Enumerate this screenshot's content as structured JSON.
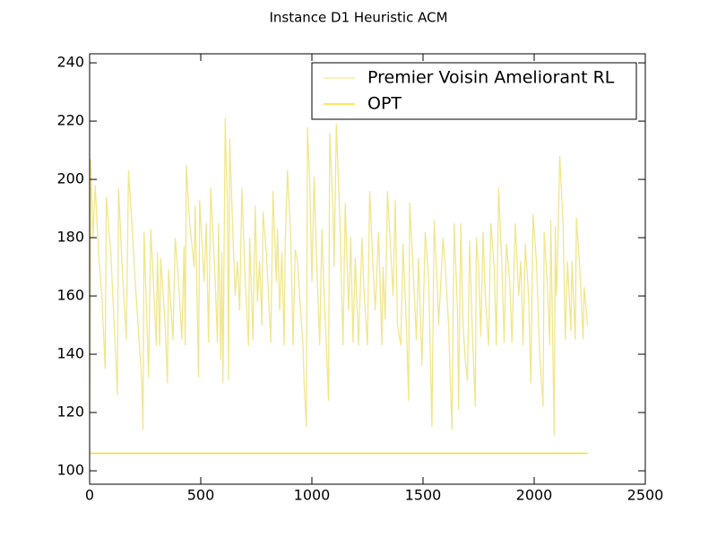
{
  "chart_data": {
    "type": "line",
    "title": "Instance D1 Heuristic ACM",
    "xlim": [
      0,
      2500
    ],
    "xticks": [
      0,
      500,
      1000,
      1500,
      2000,
      2500
    ],
    "ylim": [
      95.4,
      243.1
    ],
    "yticks": [
      100,
      120,
      140,
      160,
      180,
      200,
      220,
      240
    ],
    "legend": "upper right",
    "series": [
      {
        "name": "Premier Voisin Ameliorant RL",
        "color": "#f0e68c",
        "x": [
          0,
          5,
          15,
          25,
          40,
          55,
          70,
          75,
          95,
          115,
          125,
          130,
          145,
          165,
          175,
          190,
          205,
          235,
          240,
          245,
          260,
          265,
          275,
          290,
          300,
          305,
          315,
          320,
          340,
          350,
          355,
          375,
          385,
          400,
          415,
          425,
          430,
          435,
          450,
          470,
          475,
          490,
          495,
          515,
          525,
          535,
          545,
          565,
          575,
          580,
          590,
          595,
          600,
          610,
          620,
          625,
          630,
          645,
          655,
          665,
          675,
          685,
          700,
          715,
          720,
          735,
          745,
          755,
          765,
          775,
          780,
          795,
          805,
          815,
          825,
          840,
          845,
          855,
          865,
          875,
          880,
          890,
          905,
          915,
          925,
          935,
          945,
          960,
          965,
          975,
          980,
          990,
          1000,
          1010,
          1020,
          1035,
          1045,
          1055,
          1065,
          1075,
          1080,
          1095,
          1100,
          1110,
          1125,
          1140,
          1150,
          1165,
          1175,
          1185,
          1195,
          1210,
          1225,
          1235,
          1250,
          1260,
          1275,
          1285,
          1300,
          1315,
          1320,
          1330,
          1340,
          1355,
          1365,
          1375,
          1385,
          1400,
          1410,
          1425,
          1435,
          1440,
          1455,
          1470,
          1480,
          1495,
          1510,
          1525,
          1540,
          1550,
          1565,
          1570,
          1590,
          1600,
          1615,
          1630,
          1640,
          1655,
          1660,
          1670,
          1680,
          1690,
          1700,
          1710,
          1720,
          1735,
          1740,
          1750,
          1760,
          1770,
          1780,
          1795,
          1805,
          1820,
          1830,
          1840,
          1855,
          1865,
          1875,
          1890,
          1900,
          1915,
          1930,
          1940,
          1950,
          1960,
          1975,
          1985,
          1995,
          2010,
          2025,
          2040,
          2045,
          2060,
          2070,
          2075,
          2090,
          2095,
          2100,
          2105,
          2115,
          2130,
          2140,
          2150,
          2165,
          2170,
          2185,
          2190,
          2205,
          2220,
          2225,
          2240
        ],
        "values": [
          120,
          207,
          180,
          198,
          175,
          160,
          135,
          194,
          175,
          143,
          126,
          197,
          172,
          145,
          203,
          185,
          165,
          130,
          114,
          182,
          145,
          132,
          183,
          160,
          143,
          175,
          143,
          173,
          150,
          130,
          169,
          145,
          180,
          165,
          145,
          177,
          143,
          205,
          185,
          170,
          191,
          132,
          193,
          165,
          185,
          144,
          197,
          165,
          144,
          185,
          138,
          175,
          130,
          221,
          190,
          131,
          214,
          180,
          160,
          172,
          155,
          197,
          165,
          143,
          180,
          145,
          191,
          158,
          172,
          150,
          189,
          175,
          160,
          144,
          196,
          165,
          183,
          155,
          175,
          143,
          178,
          203,
          180,
          143,
          176,
          172,
          160,
          143,
          130,
          115,
          218,
          200,
          165,
          201,
          175,
          143,
          183,
          160,
          143,
          124,
          216,
          190,
          170,
          219,
          188,
          143,
          192,
          155,
          180,
          144,
          173,
          143,
          180,
          161,
          143,
          196,
          170,
          155,
          182,
          143,
          170,
          152,
          196,
          175,
          160,
          193,
          150,
          143,
          178,
          150,
          124,
          192,
          170,
          145,
          173,
          136,
          182,
          166,
          115,
          186,
          162,
          150,
          180,
          170,
          150,
          114,
          185,
          155,
          121,
          185,
          150,
          138,
          131,
          179,
          152,
          122,
          180,
          170,
          146,
          182,
          160,
          143,
          185,
          170,
          143,
          197,
          170,
          144,
          178,
          165,
          144,
          185,
          160,
          172,
          143,
          178,
          160,
          130,
          188,
          172,
          140,
          122,
          182,
          163,
          143,
          186,
          112,
          184,
          160,
          172,
          208,
          185,
          145,
          172,
          148,
          172,
          145,
          187,
          170,
          145,
          163,
          150
        ]
      },
      {
        "name": "OPT",
        "color": "#ffd700",
        "x": [
          0,
          2240
        ],
        "values": [
          106,
          106
        ]
      }
    ]
  }
}
